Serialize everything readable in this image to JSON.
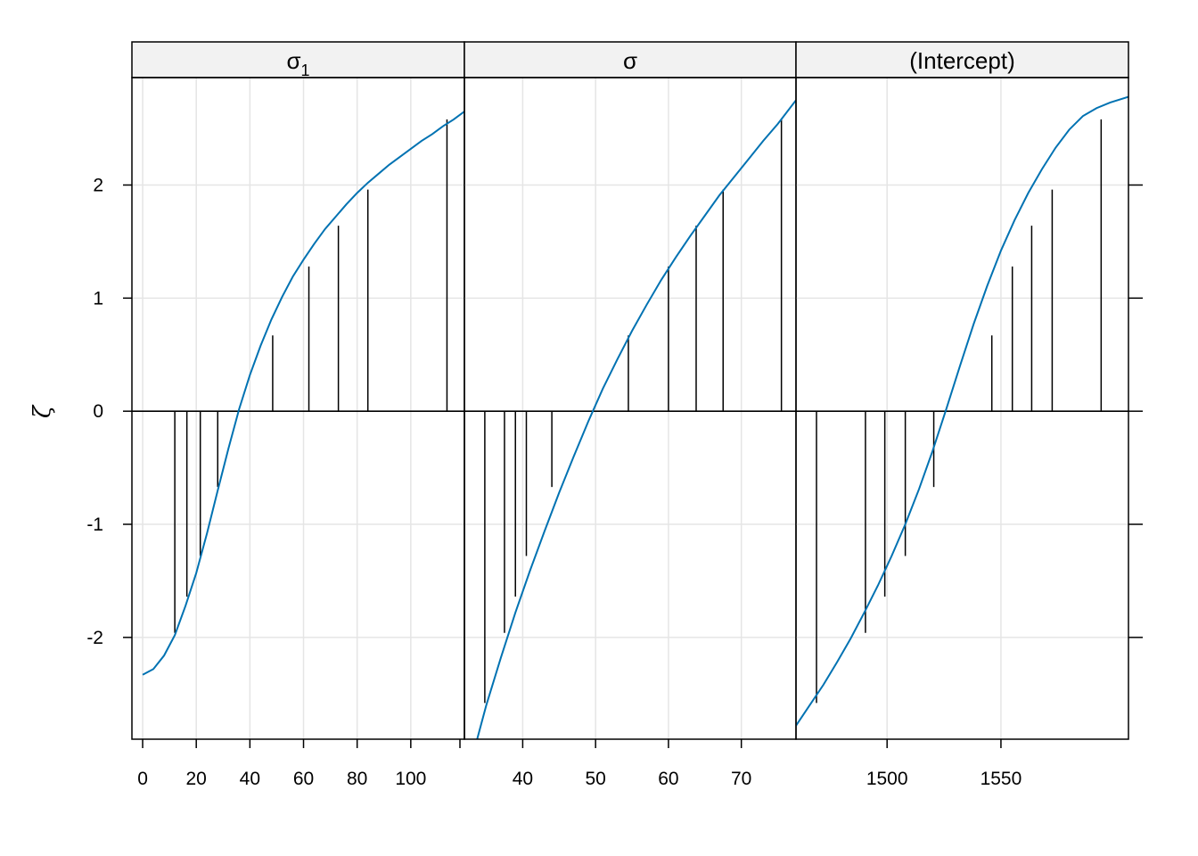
{
  "chart_data": {
    "type": "line",
    "ylabel": "ζ",
    "ylim": [
      -2.9,
      2.95
    ],
    "y_ticks": [
      -2,
      -1,
      0,
      1,
      2
    ],
    "y_tick_labels": [
      "-2",
      "-1",
      "0",
      "1",
      "2"
    ],
    "grid": true,
    "colors": {
      "curve": "#0072b2",
      "spike": "#000000",
      "grid": "#e5e5e5",
      "strip": "#f2f2f2"
    },
    "panels": [
      {
        "strip": "σ",
        "strip_sub": "1",
        "xlim": [
          -4,
          120
        ],
        "x_ticks": [
          0,
          20,
          40,
          60,
          80,
          100
        ],
        "x_tick_labels": [
          "0",
          "20",
          "40",
          "60",
          "80",
          "100"
        ],
        "curve": {
          "x": [
            0,
            4,
            8,
            12,
            16,
            20,
            24,
            28,
            32,
            36,
            40,
            44,
            48,
            52,
            56,
            60,
            64,
            68,
            72,
            76,
            80,
            84,
            88,
            92,
            96,
            100,
            104,
            108,
            112,
            116,
            120
          ],
          "y": [
            -2.33,
            -2.28,
            -2.16,
            -1.98,
            -1.72,
            -1.43,
            -1.08,
            -0.7,
            -0.33,
            0.02,
            0.32,
            0.58,
            0.81,
            1.01,
            1.19,
            1.34,
            1.48,
            1.61,
            1.72,
            1.83,
            1.93,
            2.02,
            2.1,
            2.18,
            2.25,
            2.32,
            2.39,
            2.45,
            2.52,
            2.58,
            2.65
          ]
        },
        "spikes": {
          "x": [
            12,
            16.5,
            21.5,
            28,
            48.5,
            62,
            73,
            84,
            113.5
          ],
          "y": [
            -1.96,
            -1.64,
            -1.28,
            -0.67,
            0.67,
            1.28,
            1.64,
            1.96,
            2.58
          ]
        }
      },
      {
        "strip": "σ",
        "strip_sub": "",
        "xlim": [
          32,
          77.5
        ],
        "x_ticks": [
          40,
          50,
          60,
          70
        ],
        "x_tick_labels": [
          "40",
          "50",
          "60",
          "70"
        ],
        "curve": {
          "x": [
            33.5,
            35,
            37,
            39,
            41,
            43,
            45,
            47,
            49,
            51,
            53,
            55,
            57,
            59,
            61,
            63,
            65,
            67,
            69,
            71,
            73,
            75,
            77.5
          ],
          "y": [
            -2.96,
            -2.6,
            -2.18,
            -1.78,
            -1.41,
            -1.06,
            -0.72,
            -0.4,
            -0.09,
            0.2,
            0.46,
            0.71,
            0.94,
            1.16,
            1.36,
            1.55,
            1.73,
            1.91,
            2.07,
            2.23,
            2.39,
            2.54,
            2.75
          ]
        },
        "spikes": {
          "x": [
            32,
            34.8,
            37.5,
            39,
            40.5,
            44,
            54.5,
            60,
            63.8,
            67.5,
            75.5
          ],
          "y": [
            -2.9,
            -2.58,
            -1.96,
            -1.64,
            -1.28,
            -0.67,
            0.67,
            1.28,
            1.64,
            1.96,
            2.58
          ]
        }
      },
      {
        "strip": "(Intercept)",
        "strip_sub": "",
        "xlim": [
          1460,
          1606
        ],
        "x_ticks": [
          1500,
          1550
        ],
        "x_tick_labels": [
          "1500",
          "1550"
        ],
        "curve": {
          "x": [
            1460,
            1466,
            1472,
            1478,
            1484,
            1490,
            1496,
            1502,
            1508,
            1514,
            1520,
            1526,
            1532,
            1538,
            1544,
            1550,
            1556,
            1562,
            1568,
            1574,
            1580,
            1586,
            1592,
            1598,
            1606
          ],
          "y": [
            -2.78,
            -2.6,
            -2.42,
            -2.22,
            -2.01,
            -1.78,
            -1.54,
            -1.28,
            -1.0,
            -0.69,
            -0.35,
            0.02,
            0.4,
            0.77,
            1.11,
            1.42,
            1.69,
            1.93,
            2.14,
            2.33,
            2.49,
            2.61,
            2.68,
            2.73,
            2.78
          ]
        },
        "spikes": {
          "x": [
            1469,
            1490.5,
            1499,
            1508,
            1520.5,
            1546,
            1555,
            1563.5,
            1572.5,
            1594
          ],
          "y": [
            -2.58,
            -1.96,
            -1.64,
            -1.28,
            -0.67,
            0.67,
            1.28,
            1.64,
            1.96,
            2.58
          ]
        }
      }
    ]
  }
}
